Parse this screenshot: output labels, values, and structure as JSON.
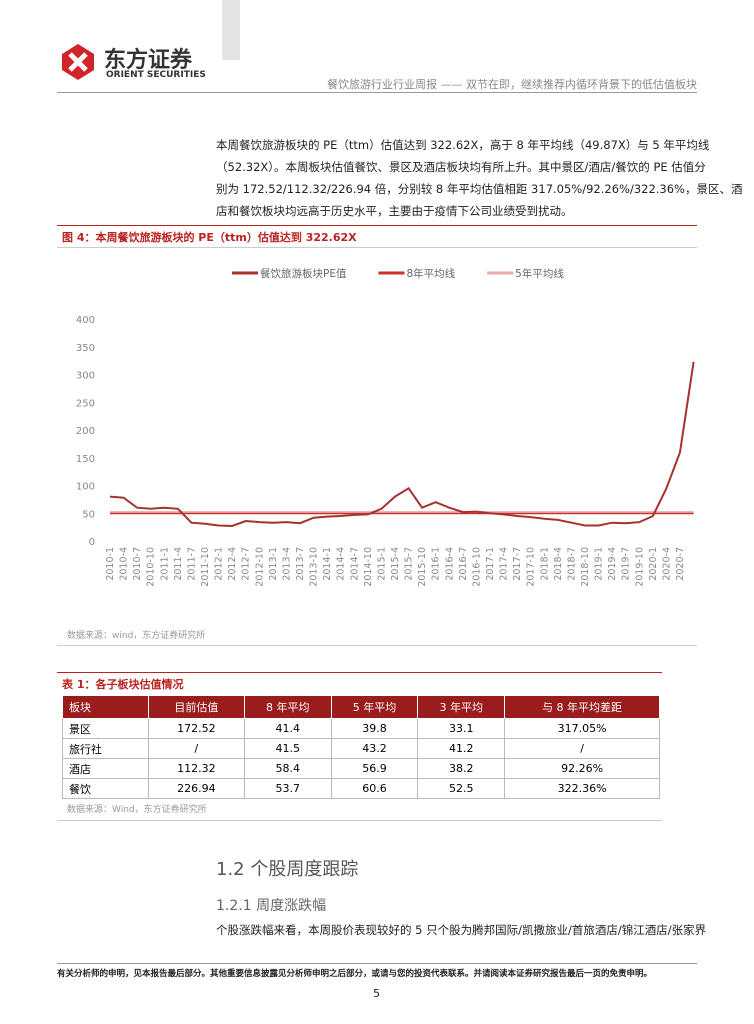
{
  "header": {
    "logo_cn": "东方证券",
    "logo_en": "ORIENT SECURITIES",
    "title": "餐饮旅游行业行业周报 —— 双节在即，继续推荐内循环背景下的低估值板块"
  },
  "paragraph1": [
    "本周餐饮旅游板块的 PE（ttm）估值达到 322.62X，高于 8 年平均线（49.87X）与 5 年平均线",
    "（52.32X）。本周板块估值餐饮、景区及酒店板块均有所上升。其中景区/酒店/餐饮的 PE 估值分",
    "别为 172.52/112.32/226.94 倍，分别较 8 年平均估值相距 317.05%/92.26%/322.36%，景区、酒",
    "店和餐饮板块均远高于历史水平，主要由于疫情下公司业绩受到扰动。"
  ],
  "figure_title": "图 4：本周餐饮旅游板块的 PE（ttm）估值达到 322.62X",
  "chart_data": {
    "type": "line",
    "categories": [
      "2010-1",
      "2010-4",
      "2010-7",
      "2010-10",
      "2011-1",
      "2011-4",
      "2011-7",
      "2011-10",
      "2012-1",
      "2012-4",
      "2012-7",
      "2012-10",
      "2013-1",
      "2013-4",
      "2013-7",
      "2013-10",
      "2014-1",
      "2014-4",
      "2014-7",
      "2014-10",
      "2015-1",
      "2015-4",
      "2015-7",
      "2015-10",
      "2016-1",
      "2016-4",
      "2016-7",
      "2016-10",
      "2017-1",
      "2017-4",
      "2017-7",
      "2017-10",
      "2018-1",
      "2018-4",
      "2018-7",
      "2018-10",
      "2019-1",
      "2019-4",
      "2019-7",
      "2019-10",
      "2020-1",
      "2020-4",
      "2020-7",
      null
    ],
    "series": [
      {
        "name": "餐饮旅游板块PE值",
        "color": "#a8312f",
        "values": [
          80,
          78,
          60,
          58,
          60,
          58,
          33,
          31,
          28,
          27,
          36,
          34,
          33,
          34,
          32,
          42,
          44,
          45,
          47,
          48,
          58,
          80,
          95,
          60,
          70,
          60,
          52,
          53,
          50,
          48,
          45,
          43,
          40,
          38,
          33,
          28,
          28,
          33,
          32,
          34,
          45,
          95,
          160,
          322.62
        ]
      },
      {
        "name": "8年平均线",
        "color": "#c8322e",
        "values": [
          49.87,
          49.87,
          49.87,
          49.87,
          49.87,
          49.87,
          49.87,
          49.87,
          49.87,
          49.87,
          49.87,
          49.87,
          49.87,
          49.87,
          49.87,
          49.87,
          49.87,
          49.87,
          49.87,
          49.87,
          49.87,
          49.87,
          49.87,
          49.87,
          49.87,
          49.87,
          49.87,
          49.87,
          49.87,
          49.87,
          49.87,
          49.87,
          49.87,
          49.87,
          49.87,
          49.87,
          49.87,
          49.87,
          49.87,
          49.87,
          49.87,
          49.87,
          49.87,
          49.87
        ]
      },
      {
        "name": "5年平均线",
        "color": "#e9a9a6",
        "values": [
          52.32,
          52.32,
          52.32,
          52.32,
          52.32,
          52.32,
          52.32,
          52.32,
          52.32,
          52.32,
          52.32,
          52.32,
          52.32,
          52.32,
          52.32,
          52.32,
          52.32,
          52.32,
          52.32,
          52.32,
          52.32,
          52.32,
          52.32,
          52.32,
          52.32,
          52.32,
          52.32,
          52.32,
          52.32,
          52.32,
          52.32,
          52.32,
          52.32,
          52.32,
          52.32,
          52.32,
          52.32,
          52.32,
          52.32,
          52.32,
          52.32,
          52.32,
          52.32,
          52.32
        ]
      }
    ],
    "ylim": [
      0,
      400
    ],
    "yticks": [
      0,
      50,
      100,
      150,
      200,
      250,
      300,
      350,
      400
    ],
    "grid": false
  },
  "figure_source": "数据来源：wind，东方证券研究所",
  "table_title": "表 1：各子板块估值情况",
  "table": {
    "header": [
      "板块",
      "目前估值",
      "8 年平均",
      "5 年平均",
      "3 年平均",
      "与 8 年平均差距"
    ],
    "rows": [
      [
        "景区",
        "172.52",
        "41.4",
        "39.8",
        "33.1",
        "317.05%"
      ],
      [
        "旅行社",
        "/",
        "41.5",
        "43.2",
        "41.2",
        "/"
      ],
      [
        "酒店",
        "112.32",
        "58.4",
        "56.9",
        "38.2",
        "92.26%"
      ],
      [
        "餐饮",
        "226.94",
        "53.7",
        "60.6",
        "52.5",
        "322.36%"
      ]
    ]
  },
  "table_source": "数据来源：Wind，东方证券研究所",
  "section": "1.2 个股周度跟踪",
  "subsection": "1.2.1 周度涨跌幅",
  "paragraph2": "个股涨跌幅来看，本周股价表现较好的 5 只个股为腾邦国际/凯撒旅业/首旅酒店/锦江酒店/张家界",
  "footer": "有关分析师的申明，见本报告最后部分。其他重要信息披露见分析师申明之后部分，或请与您的投资代表联系。并请阅读本证券研究报告最后一页的免责申明。",
  "page_number": "5"
}
